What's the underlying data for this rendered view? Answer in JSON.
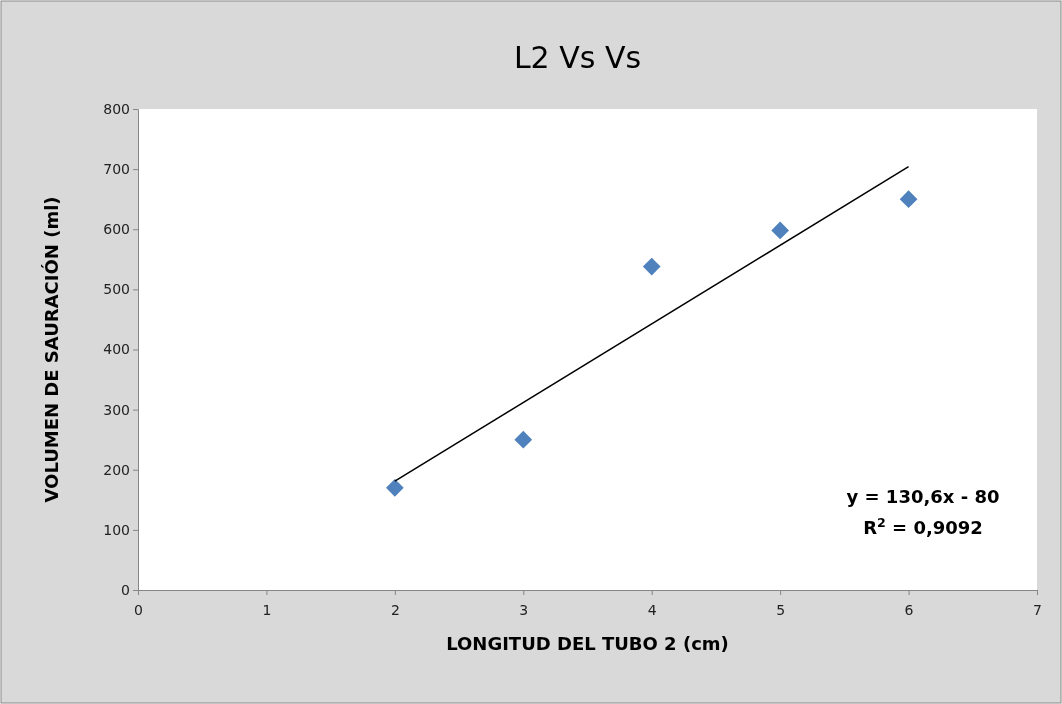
{
  "chart_data": {
    "type": "scatter",
    "title": "L2 Vs Vs",
    "xlabel": "LONGITUD DEL TUBO 2 (cm)",
    "ylabel": "VOLUMEN DE SAURACIÓN (ml)",
    "xlim": [
      0,
      7
    ],
    "xticks": [
      0,
      1,
      2,
      3,
      4,
      5,
      6,
      7
    ],
    "ylim": [
      0,
      800
    ],
    "yticks": [
      0,
      100,
      200,
      300,
      400,
      500,
      600,
      700,
      800
    ],
    "grid": false,
    "marker": "diamond",
    "series": [
      {
        "color": "#4f81bd",
        "x": [
          2,
          3,
          4,
          5,
          6
        ],
        "values": [
          170,
          250,
          538,
          598,
          650
        ]
      },
      {
        "type": "line",
        "color": "#000000",
        "x": [
          2,
          6
        ],
        "values": [
          181,
          704
        ],
        "marker": "none",
        "line_style": "solid"
      }
    ],
    "annotations": [
      "y = 130,6x - 80",
      "R$^{2}$ = 0,9092"
    ]
  }
}
